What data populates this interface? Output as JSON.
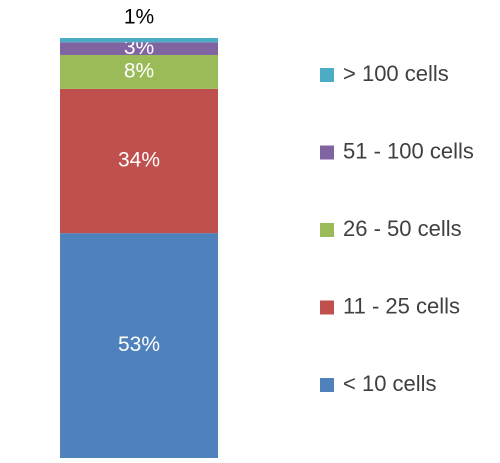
{
  "chart_data": {
    "type": "stacked-bar",
    "series": [
      {
        "name": "< 10 cells",
        "color": "#4f81bd",
        "values": [
          53
        ],
        "value_labels": [
          "53%"
        ]
      },
      {
        "name": "11 - 25 cells",
        "color": "#c0504d",
        "values": [
          34
        ],
        "value_labels": [
          "34%"
        ]
      },
      {
        "name": "26 - 50 cells",
        "color": "#9bbb59",
        "values": [
          8
        ],
        "value_labels": [
          "8%"
        ]
      },
      {
        "name": "51 - 100 cells",
        "color": "#8064a2",
        "values": [
          3
        ],
        "value_labels": [
          "3%"
        ]
      },
      {
        "name": "> 100 cells",
        "color": "#4bacc6",
        "values": [
          1
        ],
        "value_labels": [
          "1%"
        ]
      }
    ],
    "legend": "right"
  }
}
